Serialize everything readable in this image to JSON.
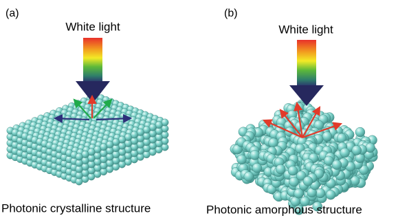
{
  "panels": [
    {
      "label": "(a)",
      "light": "White light",
      "caption": "Photonic crystalline structure"
    },
    {
      "label": "(b)",
      "light": "White light",
      "caption": "Photonic amorphous structure"
    }
  ]
}
